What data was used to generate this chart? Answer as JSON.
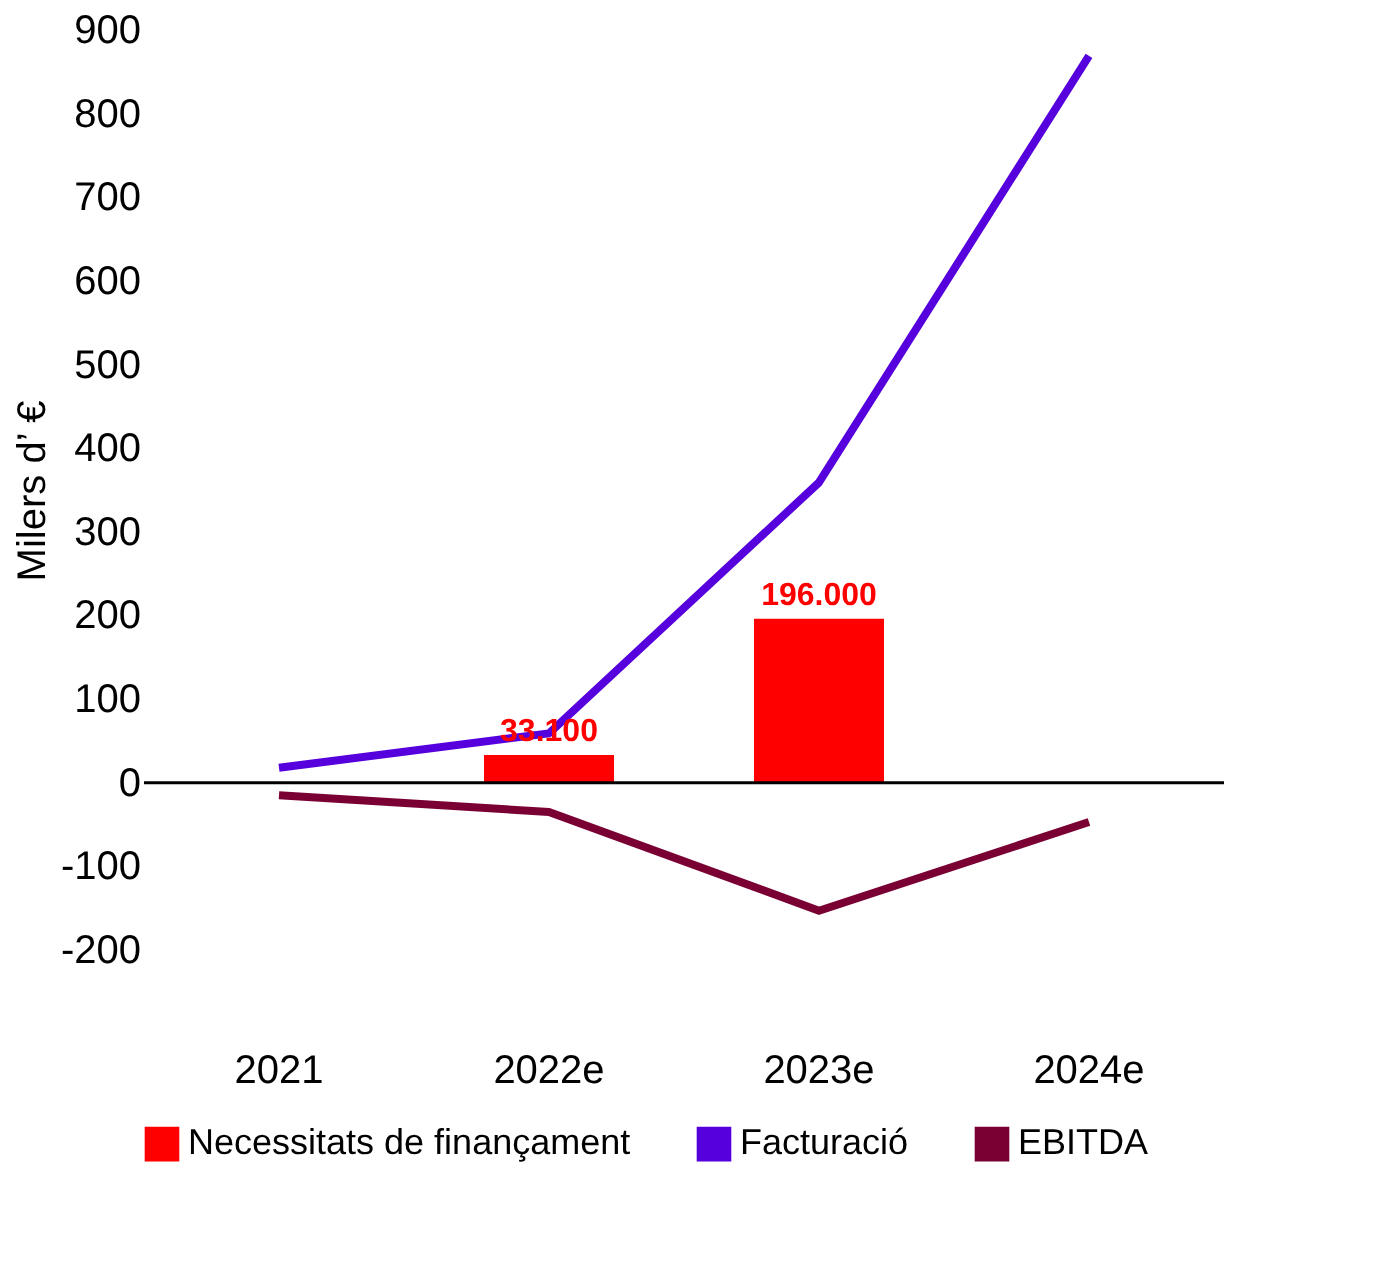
{
  "chart_data": {
    "type": "bar",
    "ylabel": "Milers d’ €",
    "categories": [
      "2021",
      "2022e",
      "2023e",
      "2024e"
    ],
    "series": [
      {
        "name": "Necessitats de finançament",
        "color": "#ff0000",
        "values": [
          null,
          33.1,
          196,
          null
        ],
        "value_labels": [
          null,
          "33.100",
          "196.000",
          null
        ]
      },
      {
        "name": "Facturació",
        "type": "line",
        "color": "#5500dd",
        "values": [
          18,
          59,
          359,
          869
        ]
      },
      {
        "name": "EBITDA",
        "type": "line",
        "color": "#7a0033",
        "values": [
          -15,
          -35,
          -153,
          -47
        ]
      }
    ],
    "ylim": [
      -200,
      900
    ],
    "yticks": [
      -200,
      -100,
      0,
      100,
      200,
      300,
      400,
      500,
      600,
      700,
      800,
      900
    ],
    "ref_lines": [
      {
        "axis": "y",
        "value": 0,
        "color": "#000000"
      }
    ],
    "grid": false,
    "legend": "bottom"
  }
}
